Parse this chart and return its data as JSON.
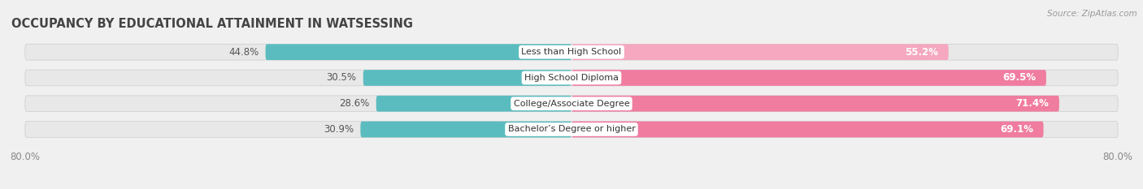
{
  "title": "OCCUPANCY BY EDUCATIONAL ATTAINMENT IN WATSESSING",
  "source": "Source: ZipAtlas.com",
  "categories": [
    "Less than High School",
    "High School Diploma",
    "College/Associate Degree",
    "Bachelor’s Degree or higher"
  ],
  "owner_values": [
    44.8,
    30.5,
    28.6,
    30.9
  ],
  "renter_values": [
    55.2,
    69.5,
    71.4,
    69.1
  ],
  "owner_color": "#5bbcbf",
  "renter_colors": [
    "#f5a8c0",
    "#f07ca0",
    "#f07ca0",
    "#f07ca0"
  ],
  "xlim_left": -82.0,
  "xlim_right": 82.0,
  "background_color": "#f0f0f0",
  "bar_background_color": "#e8e8e8",
  "title_fontsize": 10.5,
  "label_fontsize": 8.5,
  "bar_height": 0.62,
  "bar_gap": 0.18
}
